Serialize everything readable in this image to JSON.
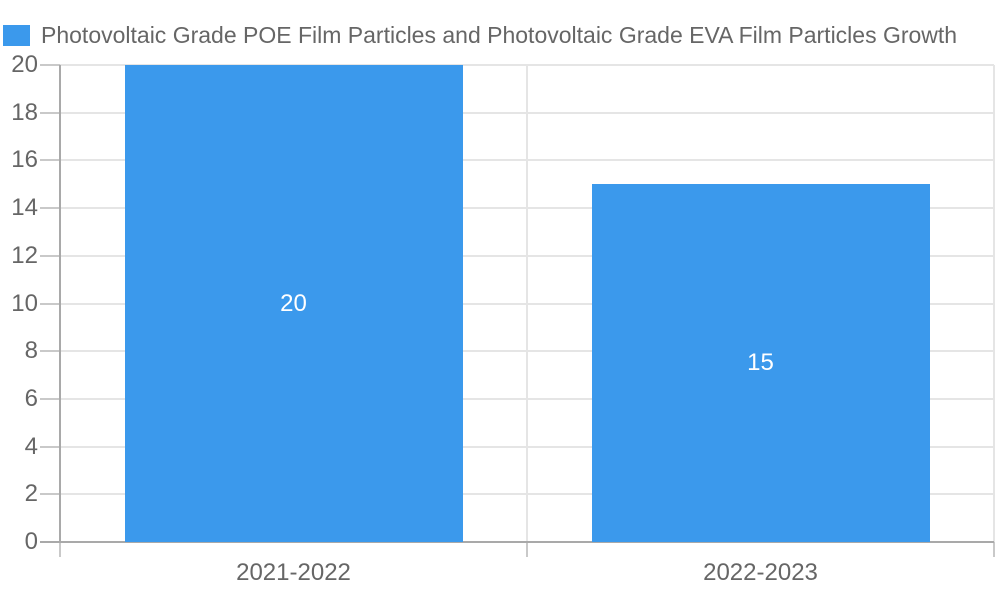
{
  "legend": {
    "label": "Photovoltaic Grade POE Film Particles and Photovoltaic Grade EVA Film Particles Growth",
    "swatch_color": "#3B99EC"
  },
  "chart_data": {
    "type": "bar",
    "title": "Photovoltaic Grade POE Film Particles and Photovoltaic Grade EVA Film Particles Growth",
    "categories": [
      "2021-2022",
      "2022-2023"
    ],
    "values": [
      20,
      15
    ],
    "data_labels": [
      "20",
      "15"
    ],
    "xlabel": "",
    "ylabel": "",
    "ylim": [
      0,
      20
    ],
    "ytick_step": 2,
    "yticks": [
      0,
      2,
      4,
      6,
      8,
      10,
      12,
      14,
      16,
      18,
      20
    ],
    "grid": true,
    "legend_position": "top-left",
    "bar_color": "#3B99EC",
    "data_label_color": "#ffffff"
  },
  "colors": {
    "bar": "#3B99EC",
    "grid_line": "#e5e5e5",
    "tick_mark": "#c9c9c9",
    "axis_line": "#a9a9a9",
    "text": "#666666",
    "background": "#ffffff"
  }
}
